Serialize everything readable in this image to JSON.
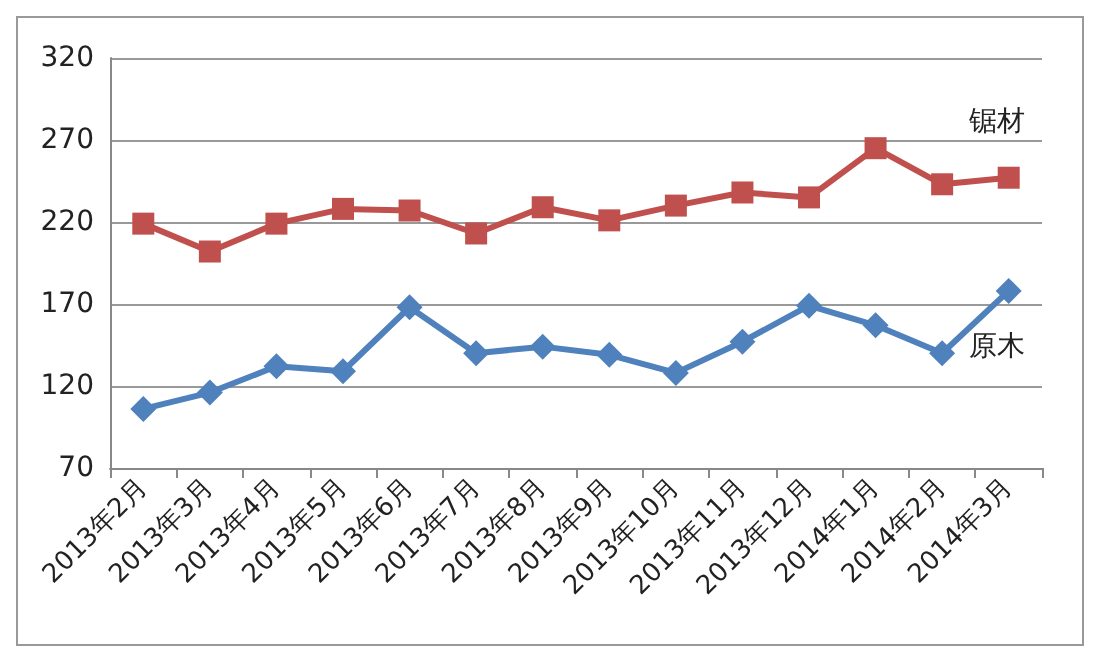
{
  "chart_data": {
    "type": "line",
    "categories": [
      "2013年2月",
      "2013年3月",
      "2013年4月",
      "2013年5月",
      "2013年6月",
      "2013年7月",
      "2013年8月",
      "2013年9月",
      "2013年10月",
      "2013年11月",
      "2013年12月",
      "2014年1月",
      "2014年2月",
      "2014年3月"
    ],
    "series": [
      {
        "name": "锯材",
        "color": "#c0504d",
        "marker": "square",
        "values": [
          219,
          202,
          219,
          228,
          227,
          213,
          229,
          221,
          230,
          238,
          235,
          265,
          243,
          247
        ]
      },
      {
        "name": "原木",
        "color": "#4f81bd",
        "marker": "diamond",
        "values": [
          106,
          116,
          132,
          129,
          168,
          140,
          144,
          139,
          128,
          147,
          169,
          157,
          140,
          178
        ]
      }
    ],
    "ylim": [
      70,
      320
    ],
    "yticks": [
      70,
      120,
      170,
      220,
      270,
      320
    ],
    "grid": "y",
    "legend": false
  }
}
